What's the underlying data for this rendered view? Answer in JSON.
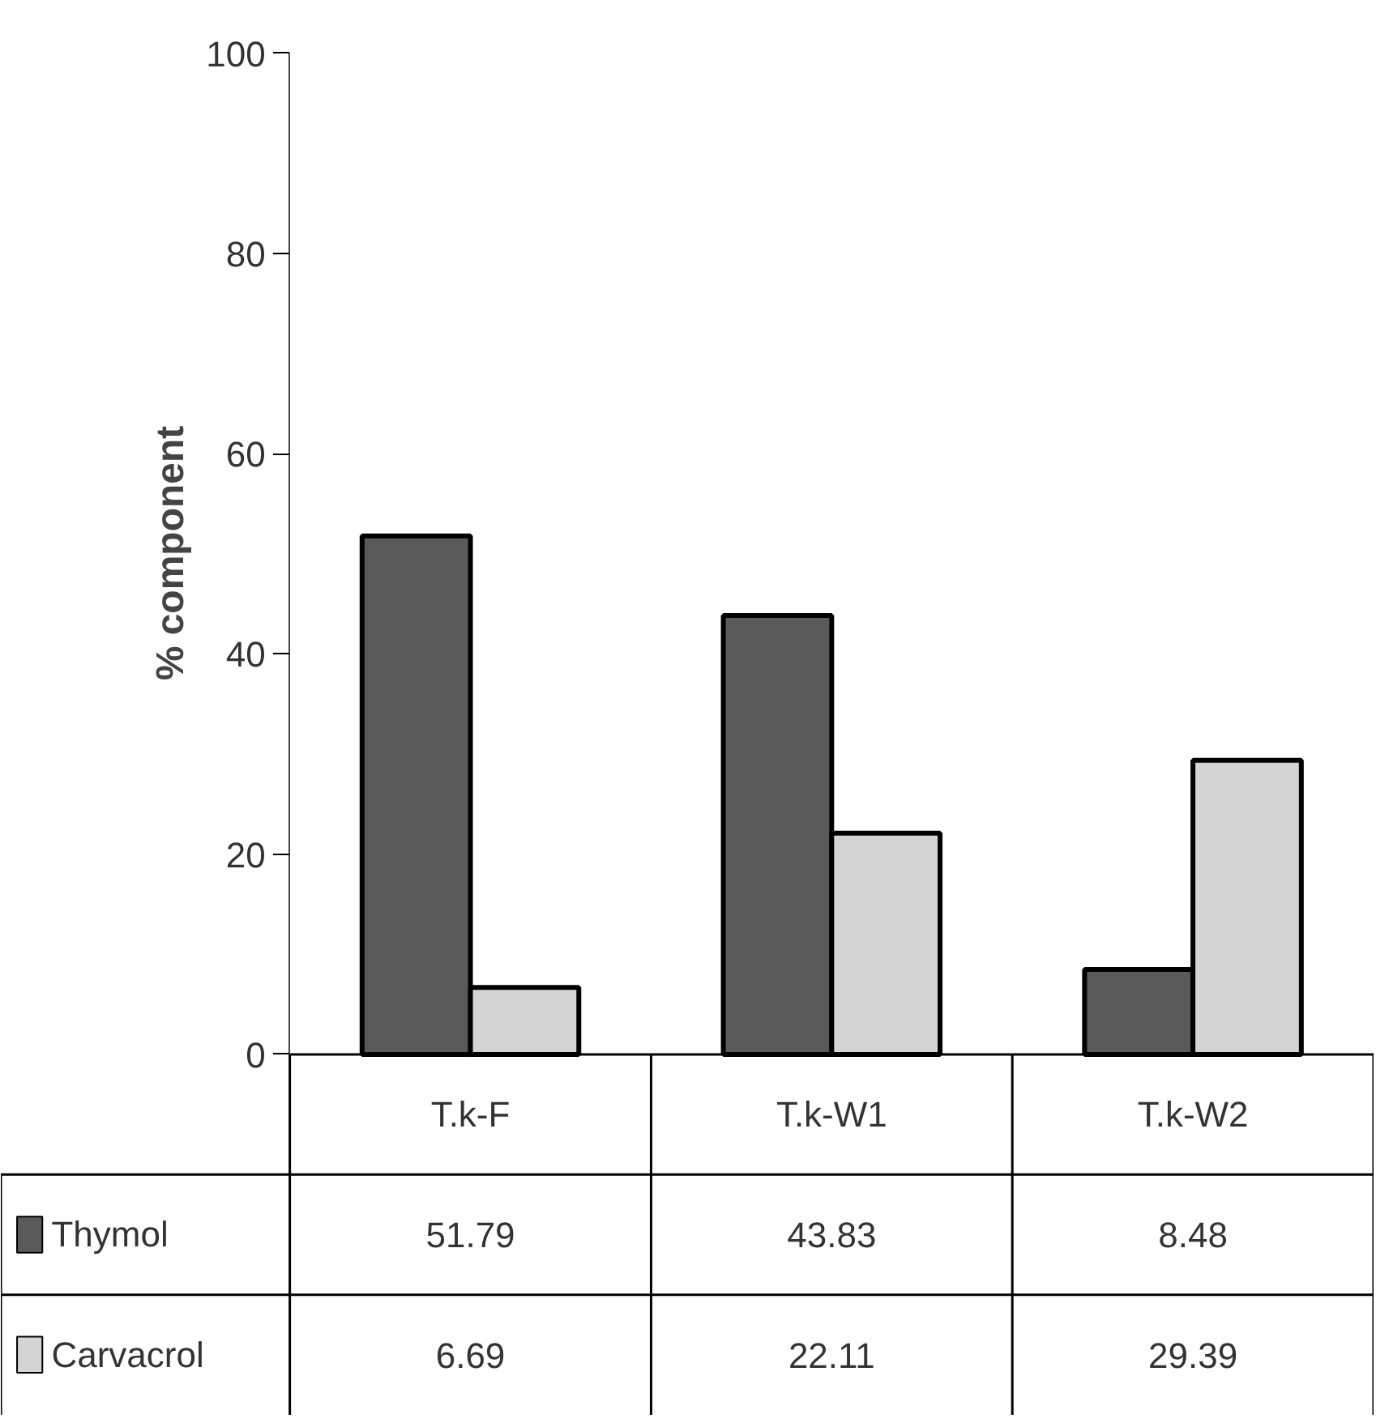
{
  "chart_data": {
    "type": "bar",
    "ylabel": "% component",
    "categories": [
      "T.k-F",
      "T.k-W1",
      "T.k-W2"
    ],
    "series": [
      {
        "name": "Thymol",
        "color": "#5a5a5a",
        "values": [
          51.79,
          43.83,
          8.48
        ]
      },
      {
        "name": "Carvacrol",
        "color": "#d4d4d4",
        "values": [
          6.69,
          22.11,
          29.39
        ]
      }
    ],
    "ylim": [
      0,
      100
    ],
    "yticks": [
      0,
      20,
      40,
      60,
      80,
      100
    ],
    "grid": false,
    "legend": "bottom",
    "data_labels": true
  }
}
